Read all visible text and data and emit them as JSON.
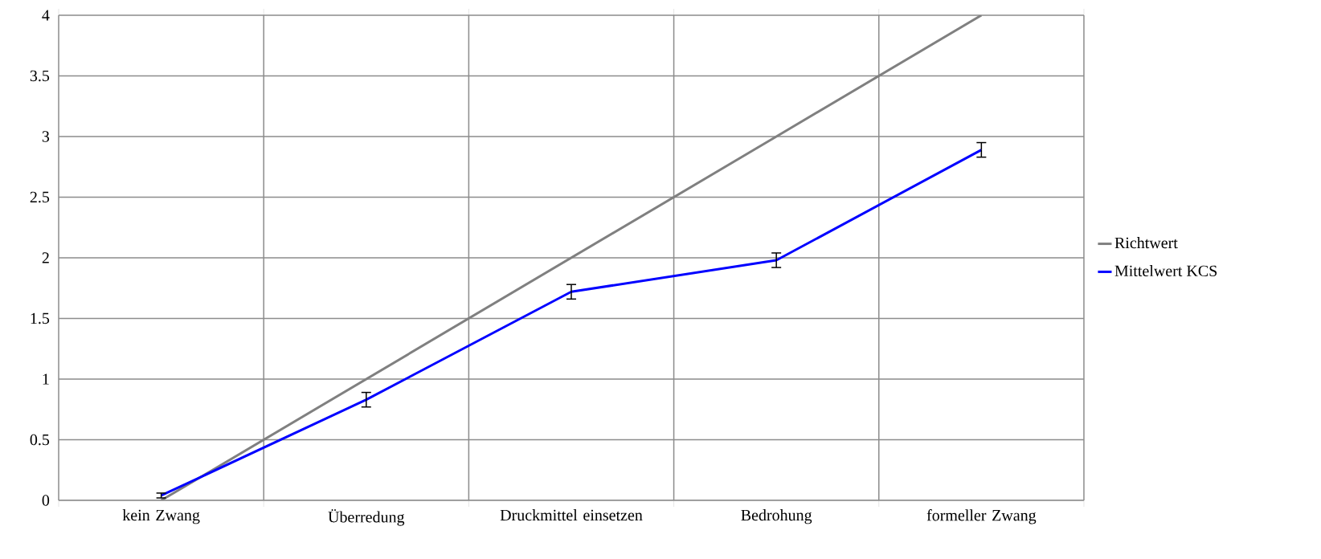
{
  "chart_data": {
    "type": "line",
    "categories": [
      "kein Zwang",
      "Überredung",
      "Druckmittel einsetzen",
      "Bedrohung",
      "formeller Zwang"
    ],
    "series": [
      {
        "name": "Richtwert",
        "color": "#808080",
        "values": [
          0,
          1,
          2,
          3,
          4
        ]
      },
      {
        "name": "Mittelwert KCS",
        "color": "#0000ff",
        "values": [
          0.04,
          0.83,
          1.72,
          1.98,
          2.89
        ],
        "errors": [
          0.02,
          0.06,
          0.06,
          0.06,
          0.06
        ]
      }
    ],
    "ylim": [
      0,
      4
    ],
    "yticks": [
      0,
      0.5,
      1,
      1.5,
      2,
      2.5,
      3,
      3.5,
      4
    ],
    "grid": true,
    "legend": "right",
    "marker": "none",
    "line_style": "solid"
  }
}
